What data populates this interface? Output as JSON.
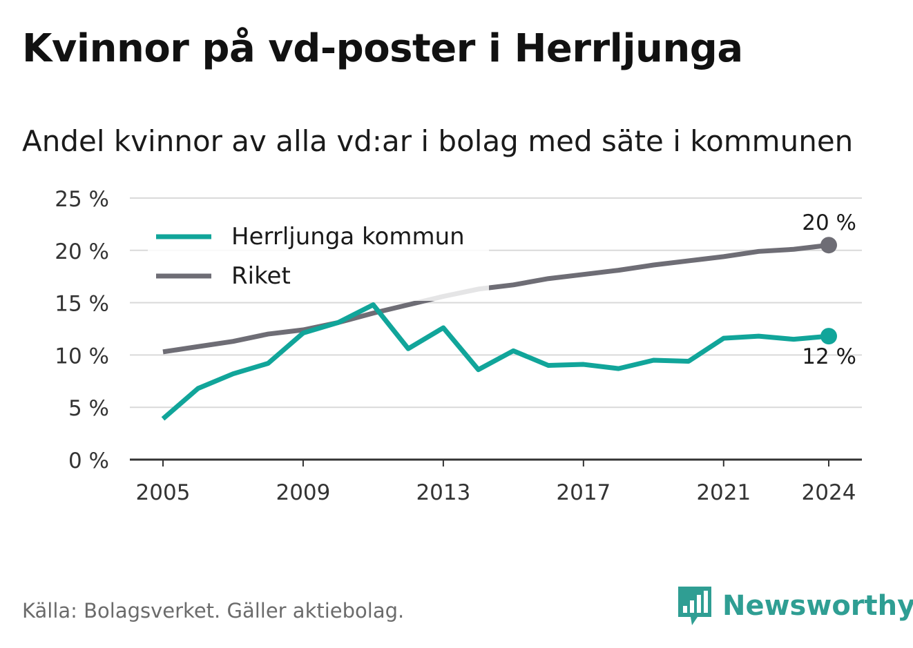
{
  "title": "Kvinnor på vd-poster i Herrljunga",
  "subtitle": "Andel kvinnor av alla vd:ar i bolag med säte i kommunen",
  "source": "Källa: Bolagsverket. Gäller aktiebolag.",
  "brand": {
    "name": "Newsworthy",
    "icon": "newsworthy-logo-icon",
    "color": "#2f9e93"
  },
  "chart_data": {
    "type": "line",
    "title": "Kvinnor på vd-poster i Herrljunga",
    "subtitle": "Andel kvinnor av alla vd:ar i bolag med säte i kommunen",
    "xlabel": "",
    "ylabel": "",
    "x": [
      2005,
      2006,
      2007,
      2008,
      2009,
      2010,
      2011,
      2012,
      2013,
      2014,
      2015,
      2016,
      2017,
      2018,
      2019,
      2020,
      2021,
      2022,
      2023,
      2024
    ],
    "xticks": [
      2005,
      2009,
      2013,
      2017,
      2021,
      2024
    ],
    "xtick_labels": [
      "2005",
      "2009",
      "2013",
      "2017",
      "2021",
      "2024"
    ],
    "ylim": [
      0,
      25
    ],
    "yticks": [
      0,
      5,
      10,
      15,
      20,
      25
    ],
    "ytick_labels": [
      "0 %",
      "5 %",
      "10 %",
      "15 %",
      "20 %",
      "25 %"
    ],
    "grid": true,
    "legend_position": "top-left",
    "series": [
      {
        "name": "Herrljunga kommun",
        "color": "#11a59a",
        "values": [
          3.9,
          6.8,
          8.2,
          9.2,
          12.1,
          13.1,
          14.8,
          10.6,
          12.6,
          8.6,
          10.4,
          9.0,
          9.1,
          8.7,
          9.5,
          9.4,
          11.6,
          11.8,
          11.5,
          11.8
        ],
        "end_label": "12 %"
      },
      {
        "name": "Riket",
        "color": "#6e6d75",
        "values": [
          10.3,
          10.8,
          11.3,
          12.0,
          12.4,
          13.1,
          14.0,
          14.8,
          15.6,
          16.3,
          16.7,
          17.3,
          17.7,
          18.1,
          18.6,
          19.0,
          19.4,
          19.9,
          20.1,
          20.5
        ],
        "end_label": "20 %"
      }
    ]
  }
}
